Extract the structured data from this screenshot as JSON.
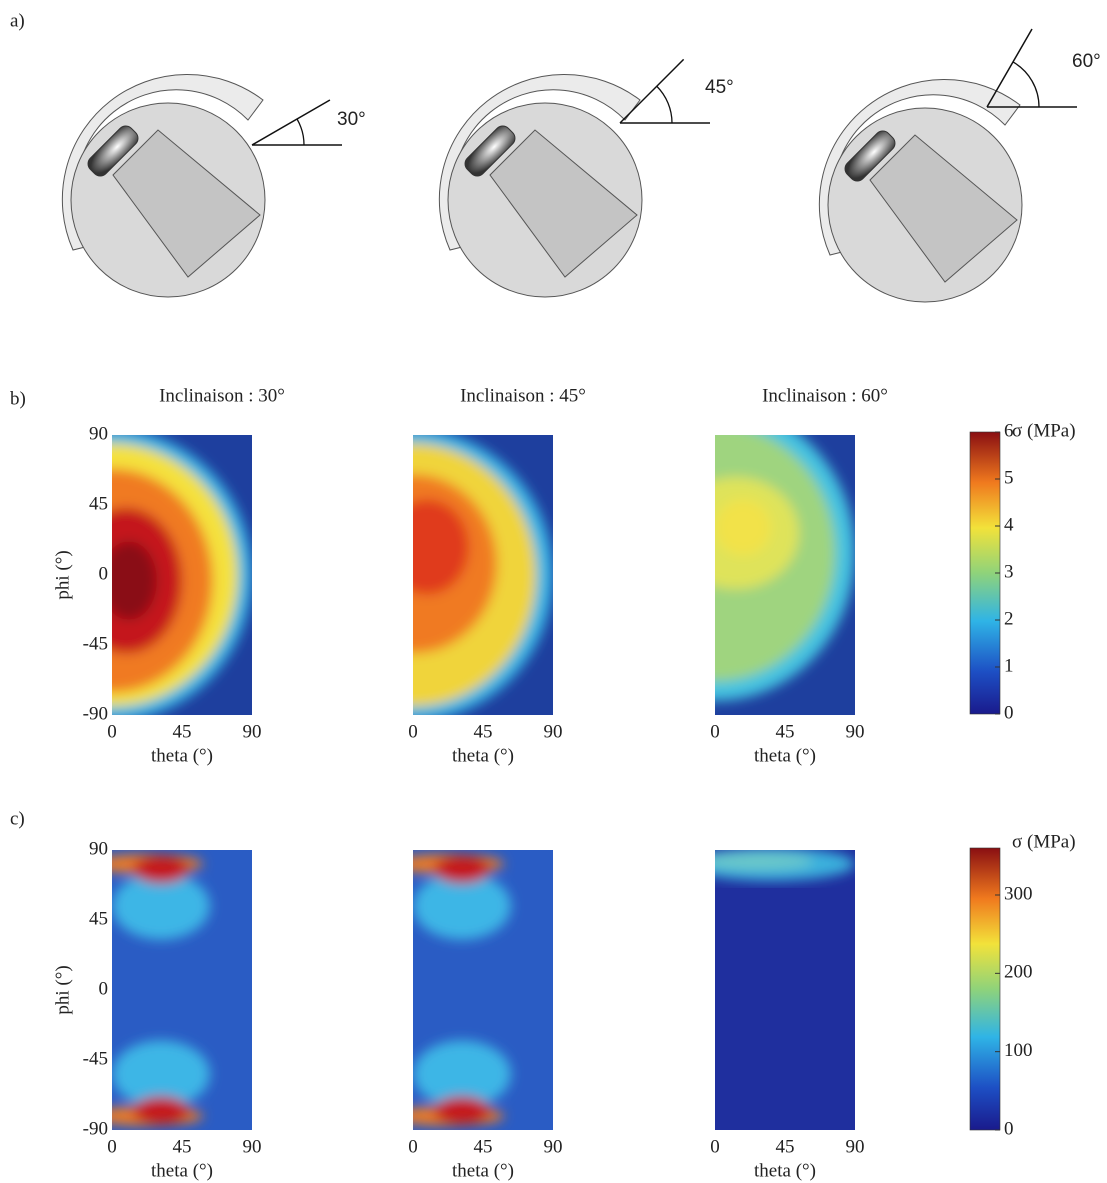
{
  "panel_a": {
    "label": "a)",
    "angles": [
      "30°",
      "45°",
      "60°"
    ]
  },
  "panel_b": {
    "label": "b)",
    "titles": [
      "Inclinaison : 30°",
      "Inclinaison : 45°",
      "Inclinaison : 60°"
    ],
    "xlabel": "theta (°)",
    "ylabel": "phi (°)",
    "xlim": [
      0,
      90
    ],
    "xticks": [
      0,
      45,
      90
    ],
    "ylim": [
      -90,
      90
    ],
    "yticks": [
      90,
      45,
      0,
      -45,
      -90
    ],
    "colorbar": {
      "label": "σ (MPa)",
      "lim": [
        0,
        6
      ],
      "ticks": [
        0,
        1,
        2,
        3,
        4,
        5,
        6
      ]
    }
  },
  "panel_c": {
    "label": "c)",
    "xlabel": "theta (°)",
    "ylabel": "phi (°)",
    "xlim": [
      0,
      90
    ],
    "xticks": [
      0,
      45,
      90
    ],
    "ylim": [
      -90,
      90
    ],
    "yticks": [
      90,
      45,
      0,
      -45,
      -90
    ],
    "colorbar": {
      "label": "σ (MPa)",
      "lim": [
        0,
        360
      ],
      "ticks": [
        0,
        100,
        200,
        300
      ]
    }
  }
}
